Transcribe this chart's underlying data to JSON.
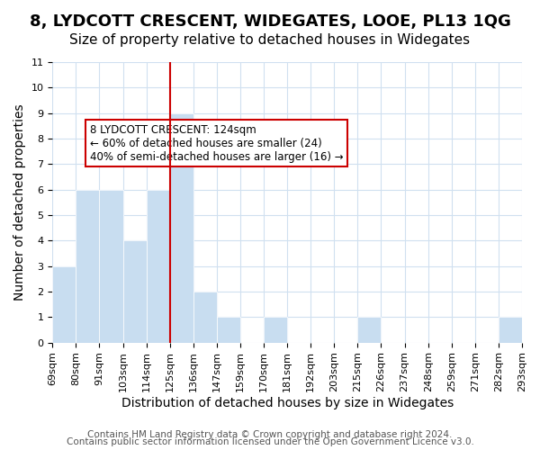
{
  "title": "8, LYDCOTT CRESCENT, WIDEGATES, LOOE, PL13 1QG",
  "subtitle": "Size of property relative to detached houses in Widegates",
  "xlabel": "Distribution of detached houses by size in Widegates",
  "ylabel": "Number of detached properties",
  "bin_edges": [
    69,
    80,
    91,
    103,
    114,
    125,
    136,
    147,
    159,
    170,
    181,
    192,
    203,
    215,
    226,
    237,
    248,
    259,
    271,
    282,
    293
  ],
  "bin_labels": [
    "69sqm",
    "80sqm",
    "91sqm",
    "103sqm",
    "114sqm",
    "125sqm",
    "136sqm",
    "147sqm",
    "159sqm",
    "170sqm",
    "181sqm",
    "192sqm",
    "203sqm",
    "215sqm",
    "226sqm",
    "237sqm",
    "248sqm",
    "259sqm",
    "271sqm",
    "282sqm",
    "293sqm"
  ],
  "bar_heights": [
    3,
    6,
    6,
    4,
    6,
    9,
    2,
    1,
    0,
    1,
    0,
    0,
    0,
    1,
    0,
    0,
    0,
    0,
    0,
    1
  ],
  "bar_color": "#c8ddf0",
  "bar_edge_color": "#ffffff",
  "reference_line_x": 125,
  "reference_line_color": "#cc0000",
  "ylim": [
    0,
    11
  ],
  "yticks": [
    0,
    1,
    2,
    3,
    4,
    5,
    6,
    7,
    8,
    9,
    10,
    11
  ],
  "annotation_text": "8 LYDCOTT CRESCENT: 124sqm\n← 60% of detached houses are smaller (24)\n40% of semi-detached houses are larger (16) →",
  "annotation_box_color": "#ffffff",
  "annotation_box_edge_color": "#cc0000",
  "footer_line1": "Contains HM Land Registry data © Crown copyright and database right 2024.",
  "footer_line2": "Contains public sector information licensed under the Open Government Licence v3.0.",
  "background_color": "#ffffff",
  "grid_color": "#d0e0f0",
  "title_fontsize": 13,
  "subtitle_fontsize": 11,
  "axis_label_fontsize": 10,
  "tick_fontsize": 8,
  "footer_fontsize": 7.5
}
